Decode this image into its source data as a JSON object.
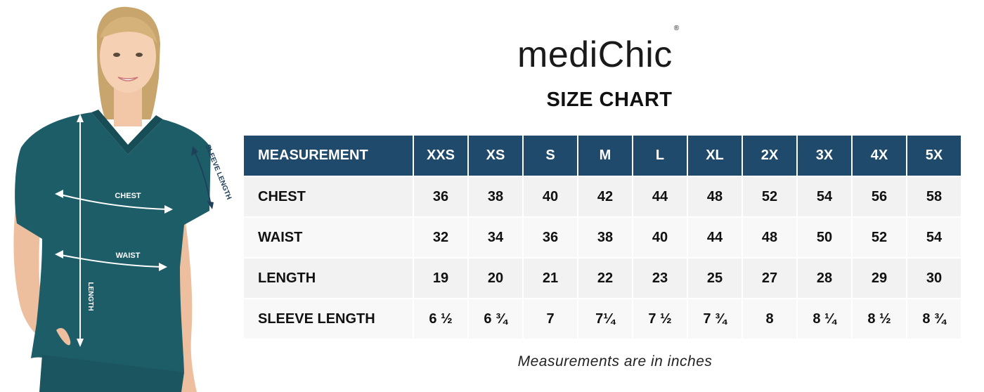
{
  "brand": {
    "light": "medi",
    "strong": "Chic",
    "mark": "®"
  },
  "title": "SIZE CHART",
  "figure": {
    "chest_label": "CHEST",
    "waist_label": "WAIST",
    "length_label": "LENGTH",
    "sleeve_label": "SLEEVE LENGTH"
  },
  "table": {
    "header_label": "MEASUREMENT",
    "sizes": [
      "XXS",
      "XS",
      "S",
      "M",
      "L",
      "XL",
      "2X",
      "3X",
      "4X",
      "5X"
    ],
    "rows": [
      {
        "label": "CHEST",
        "values": [
          "36",
          "38",
          "40",
          "42",
          "44",
          "48",
          "52",
          "54",
          "56",
          "58"
        ]
      },
      {
        "label": "WAIST",
        "values": [
          "32",
          "34",
          "36",
          "38",
          "40",
          "44",
          "48",
          "50",
          "52",
          "54"
        ]
      },
      {
        "label": "LENGTH",
        "values": [
          "19",
          "20",
          "21",
          "22",
          "23",
          "25",
          "27",
          "28",
          "29",
          "30"
        ]
      },
      {
        "label": "SLEEVE LENGTH",
        "values": [
          "6 ½",
          "6 ¾",
          "7",
          "7¼",
          "7 ½",
          "7 ¾",
          "8",
          "8 ¼",
          "8 ½",
          "8 ¾"
        ]
      }
    ]
  },
  "note": "Measurements are in inches",
  "colors": {
    "header_bg": "#1f4a6b",
    "scrub": "#1d5d67",
    "row_odd": "#f2f2f2",
    "row_even": "#f8f8f8"
  }
}
